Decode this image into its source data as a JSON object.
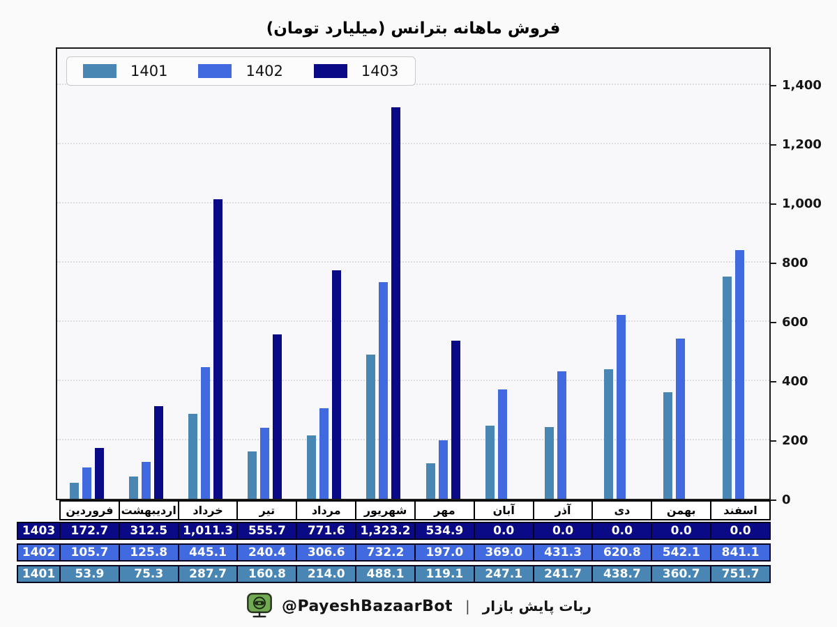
{
  "chart_data": {
    "type": "bar",
    "title": "فروش ماهانه بترانس (میلیارد تومان)",
    "categories": [
      "فروردین",
      "اردیبهشت",
      "خرداد",
      "تیر",
      "مرداد",
      "شهریور",
      "مهر",
      "آبان",
      "آذر",
      "دی",
      "بهمن",
      "اسفند"
    ],
    "series": [
      {
        "name": "1401",
        "color": "#4A86B4",
        "values": [
          53.9,
          75.3,
          287.7,
          160.8,
          214.0,
          488.1,
          119.1,
          247.1,
          241.7,
          438.7,
          360.7,
          751.7
        ]
      },
      {
        "name": "1402",
        "color": "#4169E0",
        "values": [
          105.7,
          125.8,
          445.1,
          240.4,
          306.6,
          732.2,
          197.0,
          369.0,
          431.3,
          620.8,
          542.1,
          841.1
        ]
      },
      {
        "name": "1403",
        "color": "#0A0A87",
        "values": [
          172.7,
          312.5,
          1011.3,
          555.7,
          771.6,
          1323.2,
          534.9,
          0.0,
          0.0,
          0.0,
          0.0,
          0.0
        ]
      }
    ],
    "ylim": [
      0,
      1400
    ],
    "y_ticks": [
      "0",
      "200",
      "400",
      "600",
      "800",
      "1,000",
      "1,200",
      "1,400"
    ],
    "grid": "horizontal-dotted",
    "legend_position": "top-left-inside",
    "y_axis_side": "right",
    "table_rows_order": [
      "1403",
      "1402",
      "1401"
    ]
  },
  "footer": {
    "bot_handle": "@PayeshBazaarBot",
    "separator": "|",
    "site_label": "ربات پایش بازار",
    "icon": "robot-monitor-icon",
    "icon_color": "#71AA52"
  }
}
